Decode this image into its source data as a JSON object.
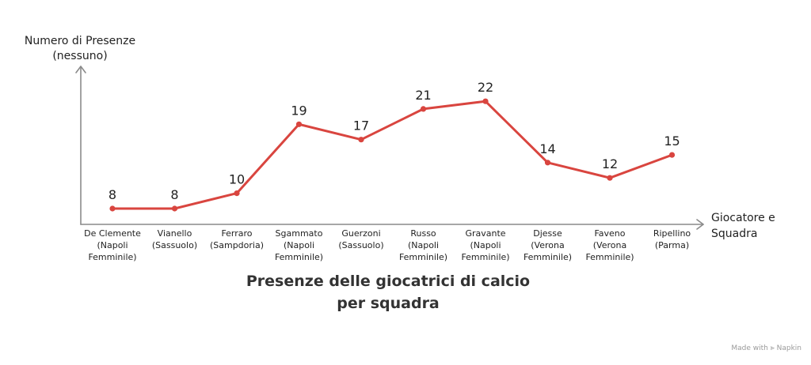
{
  "chart_data": {
    "type": "line",
    "title": "Presenze delle giocatrici di calcio per squadra",
    "xlabel": [
      "Giocatore e",
      "Squadra"
    ],
    "ylabel": [
      "Numero di Presenze",
      "(nessuno)"
    ],
    "categories": [
      [
        "De Clemente",
        "(Napoli",
        "Femminile)"
      ],
      [
        "Vianello",
        "(Sassuolo)"
      ],
      [
        "Ferraro",
        "(Sampdoria)"
      ],
      [
        "Sgammato",
        "(Napoli",
        "Femminile)"
      ],
      [
        "Guerzoni",
        "(Sassuolo)"
      ],
      [
        "Russo",
        "(Napoli",
        "Femminile)"
      ],
      [
        "Gravante",
        "(Napoli",
        "Femminile)"
      ],
      [
        "Djesse",
        "(Verona",
        "Femminile)"
      ],
      [
        "Faveno",
        "(Verona",
        "Femminile)"
      ],
      [
        "Ripellino",
        "(Parma)"
      ]
    ],
    "series": [
      {
        "values": [
          8,
          8,
          10,
          19,
          17,
          21,
          22,
          14,
          12,
          15
        ],
        "color": "#d9453f"
      }
    ],
    "data_labels": [
      "8",
      "8",
      "10",
      "19",
      "17",
      "21",
      "22",
      "14",
      "12",
      "15"
    ],
    "grid": false,
    "legend": "none"
  },
  "watermark": "Made with ⪢ Napkin"
}
